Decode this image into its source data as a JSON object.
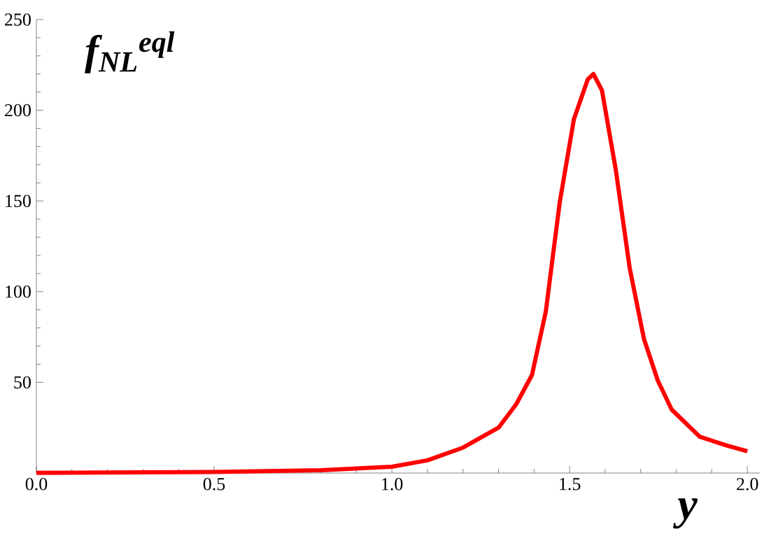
{
  "chart_data": {
    "type": "line",
    "xlabel": "y",
    "ylabel": "f$_{NL}$$^{eql}$",
    "x": [
      0,
      0.5,
      0.8,
      1.0,
      1.1,
      1.2,
      1.3,
      1.35,
      1.394,
      1.433,
      1.472,
      1.512,
      1.551,
      1.567,
      1.591,
      1.63,
      1.669,
      1.709,
      1.748,
      1.787,
      1.866,
      1.945,
      2.0
    ],
    "series": [
      {
        "color": "#ff0000",
        "values": [
          0.1,
          0.6,
          1.5,
          3.5,
          7,
          14,
          25,
          38,
          54,
          89,
          149,
          195,
          217,
          220,
          211,
          167,
          113,
          74,
          51,
          35,
          20,
          15,
          12
        ]
      }
    ],
    "xlim": [
      0,
      2.035
    ],
    "ylim": [
      0,
      250
    ],
    "xticks": [
      {
        "value": 0,
        "label": "0.0"
      },
      0.5,
      {
        "value": 1,
        "label": "1.0"
      },
      1.5,
      {
        "value": 2,
        "label": "2.0"
      }
    ],
    "yticks": [
      50,
      100,
      150,
      200,
      250
    ],
    "grid": false,
    "marker": "none",
    "line_style": "solid"
  }
}
